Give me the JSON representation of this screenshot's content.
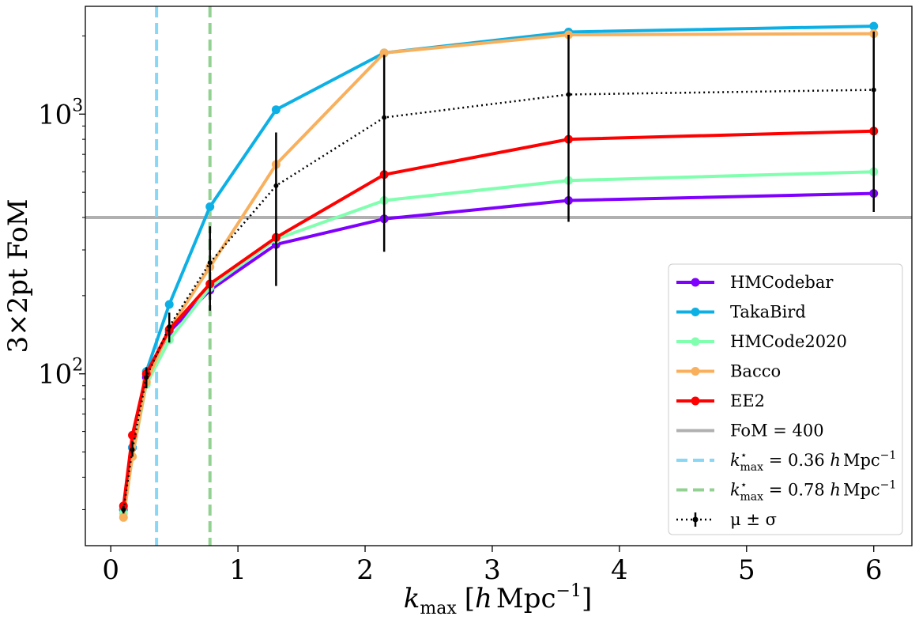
{
  "chart_data": {
    "type": "line",
    "yscale": "log",
    "xlabel": "k_max [h Mpc^-1]",
    "xlabel_parts": {
      "main": "k",
      "sub": "max",
      "bracket_open": "[",
      "h": "h",
      "unit": "Mpc",
      "sup": "−1",
      "bracket_close": "]"
    },
    "ylabel": "3×2pt FoM",
    "xlim": [
      -0.2,
      6.3
    ],
    "ylim": [
      21.8,
      2600
    ],
    "x_ticks": [
      0,
      1,
      2,
      3,
      4,
      5,
      6
    ],
    "x_tick_labels": [
      "0",
      "1",
      "2",
      "3",
      "4",
      "5",
      "6"
    ],
    "y_ticks": [
      100,
      1000
    ],
    "y_tick_labels": [
      {
        "base": "10",
        "exp": "2"
      },
      {
        "base": "10",
        "exp": "3"
      }
    ],
    "x": [
      0.1,
      0.17,
      0.28,
      0.46,
      0.78,
      1.3,
      2.15,
      3.6,
      6.0
    ],
    "series": [
      {
        "name": "HMCodebar",
        "color": "#7f00ff",
        "values": [
          30,
          52,
          97,
          145,
          210,
          315,
          395,
          465,
          495
        ]
      },
      {
        "name": "TakaBird",
        "color": "#0db0e5",
        "values": [
          30,
          52,
          102,
          185,
          440,
          1040,
          1720,
          2070,
          2180
        ]
      },
      {
        "name": "HMCode2020",
        "color": "#80ffaf",
        "values": [
          29,
          48,
          91,
          135,
          215,
          330,
          465,
          555,
          600
        ]
      },
      {
        "name": "Bacco",
        "color": "#f9b05d",
        "values": [
          28,
          48,
          93,
          148,
          258,
          640,
          1720,
          2020,
          2040
        ]
      },
      {
        "name": "EE2",
        "color": "#ff0000",
        "values": [
          31,
          58,
          100,
          148,
          222,
          335,
          585,
          800,
          860
        ]
      }
    ],
    "reference_lines": [
      {
        "name": "FoM = 400",
        "type": "horizontal",
        "value": 400,
        "color": "#b0b0b0"
      },
      {
        "name": "k*_max = 0.36 h Mpc^-1",
        "type": "vertical",
        "value": 0.36,
        "color": "#87d7f5"
      },
      {
        "name": "k*_max = 0.78 h Mpc^-1",
        "type": "vertical",
        "value": 0.78,
        "color": "#93d193"
      }
    ],
    "mean": {
      "name": "μ ± σ",
      "values": [
        30,
        51,
        97,
        152,
        268,
        530,
        970,
        1190,
        1240
      ],
      "lower": [
        29,
        48,
        88,
        132,
        175,
        218,
        295,
        385,
        420
      ],
      "upper": [
        31,
        55,
        106,
        172,
        370,
        850,
        1690,
        2020,
        2080
      ]
    },
    "legend": {
      "position": "lower-right",
      "entries": [
        {
          "label": "HMCodebar"
        },
        {
          "label": "TakaBird"
        },
        {
          "label": "HMCode2020"
        },
        {
          "label": "Bacco"
        },
        {
          "label": "EE2"
        },
        {
          "label": "FoM = 400"
        },
        {
          "label_parts": {
            "k": "k",
            "star": "⋆",
            "sub": "max",
            "eq": " = 0.36 ",
            "h": "h",
            "unit": "Mpc",
            "sup": "−1"
          }
        },
        {
          "label_parts": {
            "k": "k",
            "star": "⋆",
            "sub": "max",
            "eq": " = 0.78 ",
            "h": "h",
            "unit": "Mpc",
            "sup": "−1"
          }
        },
        {
          "label": "μ ± σ"
        }
      ]
    }
  }
}
